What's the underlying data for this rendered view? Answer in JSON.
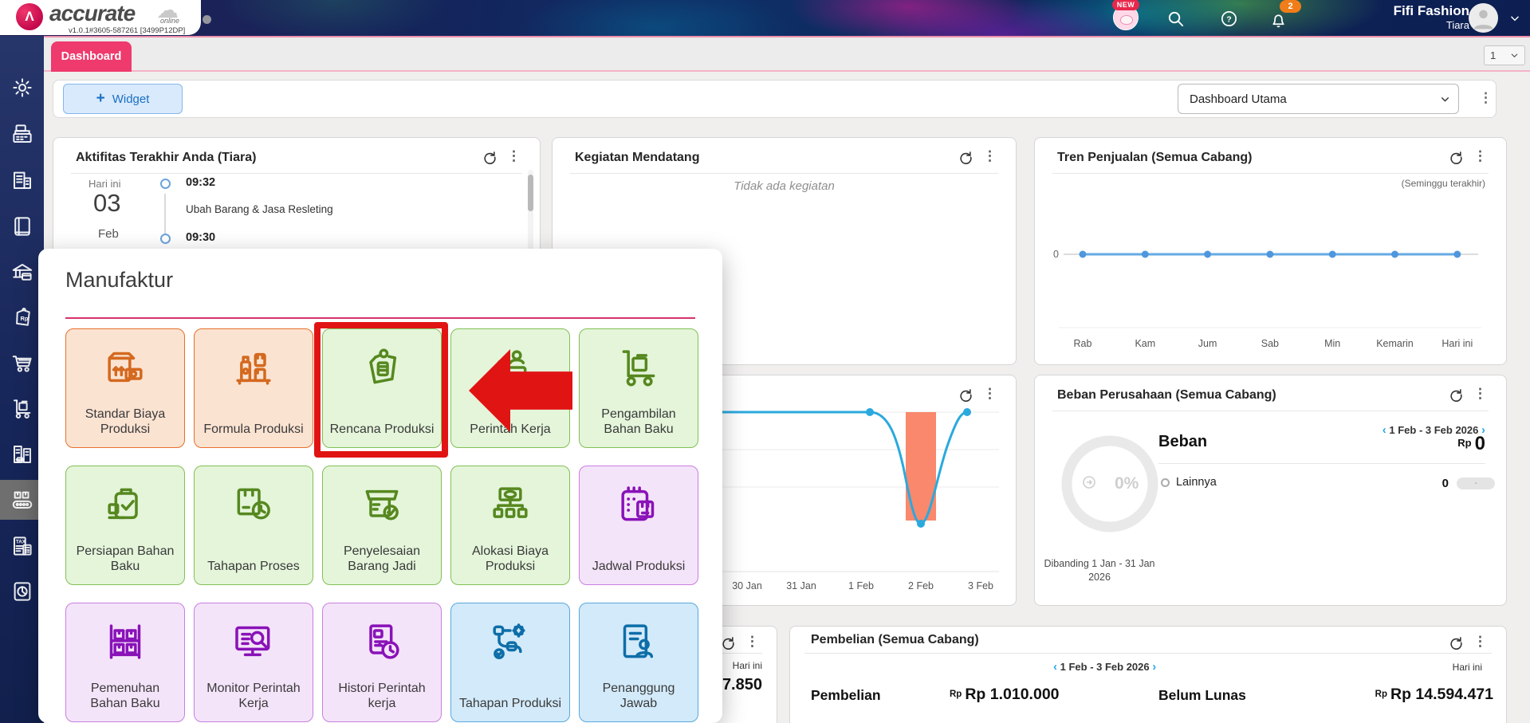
{
  "app": {
    "logo_text": "accurate",
    "logo_suffix": "online",
    "version": "v1.0.1#3605-587261 [3499P12DP]",
    "logo_mark": "Λ"
  },
  "header": {
    "user_name": "Fifi Fashion",
    "user_company": "Tiara",
    "notification_count": "2",
    "new_badge_label": "NEW"
  },
  "tab_bar": {
    "active_tab": "Dashboard",
    "page_indicator": "1"
  },
  "toolbar": {
    "widget_button_label": "Widget",
    "widget_plus": "+",
    "dashboard_select_value": "Dashboard Utama"
  },
  "sidebar": {
    "items": [
      {
        "name": "settings",
        "icon": "gear-icon"
      },
      {
        "name": "cash-register",
        "icon": "cash-register-icon"
      },
      {
        "name": "company",
        "icon": "company-building-icon"
      },
      {
        "name": "journal",
        "icon": "book-icon"
      },
      {
        "name": "banking",
        "icon": "bank-icon"
      },
      {
        "name": "pricing",
        "icon": "price-tag-rp-icon"
      },
      {
        "name": "purchases",
        "icon": "shopping-cart-icon"
      },
      {
        "name": "inventory",
        "icon": "handtruck-icon"
      },
      {
        "name": "fixed-asset",
        "icon": "building-car-icon"
      },
      {
        "name": "manufacture",
        "icon": "conveyor-icon",
        "active": true
      },
      {
        "name": "tax",
        "icon": "tax-document-icon"
      },
      {
        "name": "reports",
        "icon": "report-pie-icon"
      }
    ]
  },
  "cards": {
    "aktifitas": {
      "title": "Aktifitas Terakhir Anda (Tiara)",
      "date_label": "Hari ini",
      "date_day": "03",
      "date_month": "Feb",
      "entries": [
        {
          "time": "09:32",
          "text": "Ubah Barang & Jasa Resleting"
        },
        {
          "time": "09:30",
          "text": ""
        }
      ]
    },
    "kegiatan": {
      "title": "Kegiatan Mendatang",
      "empty_text": "Tidak ada kegiatan"
    },
    "tren": {
      "title": "Tren Penjualan (Semua Cabang)",
      "subtitle": "(Seminggu terakhir)"
    },
    "beban": {
      "title": "Beban Perusahaan (Semua Cabang)",
      "date_range": "1 Feb - 3 Feb 2026",
      "donut_pct": "0%",
      "section_label": "Beban",
      "currency": "Rp",
      "total": "0",
      "legend_label": "Lainnya",
      "legend_value": "0",
      "legend_delta": "-",
      "compare_text": "Dibanding 1 Jan - 31 Jan 2026"
    },
    "partial": {
      "period_label": "Hari ini",
      "value": "7.850"
    },
    "pembelian": {
      "title": "Pembelian (Semua Cabang)",
      "date_range": "1 Feb - 3 Feb 2026",
      "period_label": "Hari ini",
      "metric1_label": "Pembelian",
      "metric1_prefix": "Rp",
      "metric1_value": "Rp 1.010.000",
      "metric2_label": "Belum Lunas",
      "metric2_prefix": "Rp",
      "metric2_value": "Rp 14.594.471"
    }
  },
  "chart_data": [
    {
      "id": "tren_penjualan",
      "type": "line",
      "title": "Tren Penjualan (Semua Cabang)",
      "subtitle": "(Seminggu terakhir)",
      "categories": [
        "Rab",
        "Kam",
        "Jum",
        "Sab",
        "Min",
        "Kemarin",
        "Hari ini"
      ],
      "values": [
        0,
        0,
        0,
        0,
        0,
        0,
        0
      ],
      "ytick": "0",
      "ylim": [
        0,
        1
      ],
      "grid": false,
      "line_color": "#66a9e3"
    },
    {
      "id": "penjualan_harian",
      "type": "line+bar",
      "categories": [
        "30 Jan",
        "31 Jan",
        "1 Feb",
        "2 Feb",
        "3 Feb"
      ],
      "line_values": [
        0,
        0,
        0,
        -1,
        0
      ],
      "bar_values": [
        null,
        null,
        null,
        -1,
        null
      ],
      "note": "card title hidden behind dialog; line dips with negative bar at 2 Feb",
      "line_color": "#2aa9de",
      "bar_color": "#f9886c",
      "grid": true
    },
    {
      "id": "beban_donut",
      "type": "pie",
      "center_text": "0%",
      "segments": [
        {
          "name": "Lainnya",
          "value": 0
        }
      ]
    }
  ],
  "modal": {
    "title": "Manufaktur",
    "tiles": [
      {
        "label": "Standar Biaya Produksi",
        "color": "orange",
        "icon": "box-money-icon"
      },
      {
        "label": "Formula Produksi",
        "color": "orange",
        "icon": "shelf-items-icon"
      },
      {
        "label": "Rencana Produksi",
        "color": "green",
        "icon": "tag-note-icon",
        "highlighted": true
      },
      {
        "label": "Perintah Kerja",
        "color": "green",
        "icon": "machine-person-icon",
        "arrow": true
      },
      {
        "label": "Pengambilan Bahan Baku",
        "color": "green",
        "icon": "trolley-supply-icon"
      },
      {
        "label": "Persiapan Bahan Baku",
        "color": "green",
        "icon": "bag-check-icon"
      },
      {
        "label": "Tahapan Proses",
        "color": "green",
        "icon": "box-clock-icon"
      },
      {
        "label": "Penyelesaian Barang Jadi",
        "color": "green",
        "icon": "store-check-icon"
      },
      {
        "label": "Alokasi Biaya Produksi",
        "color": "green",
        "icon": "money-tree-icon"
      },
      {
        "label": "Jadwal Produksi",
        "color": "purple",
        "icon": "calendar-box-icon"
      },
      {
        "label": "Pemenuhan Bahan Baku",
        "color": "purple",
        "icon": "rack-boxes-icon"
      },
      {
        "label": "Monitor Perintah Kerja",
        "color": "purple",
        "icon": "monitor-search-icon"
      },
      {
        "label": "Histori Perintah kerja",
        "color": "purple",
        "icon": "doc-history-icon"
      },
      {
        "label": "Tahapan Produksi",
        "color": "blue",
        "icon": "flow-gear-icon"
      },
      {
        "label": "Penanggung Jawab",
        "color": "blue",
        "icon": "doc-person-icon"
      }
    ],
    "annotation_color": "#e11414"
  }
}
